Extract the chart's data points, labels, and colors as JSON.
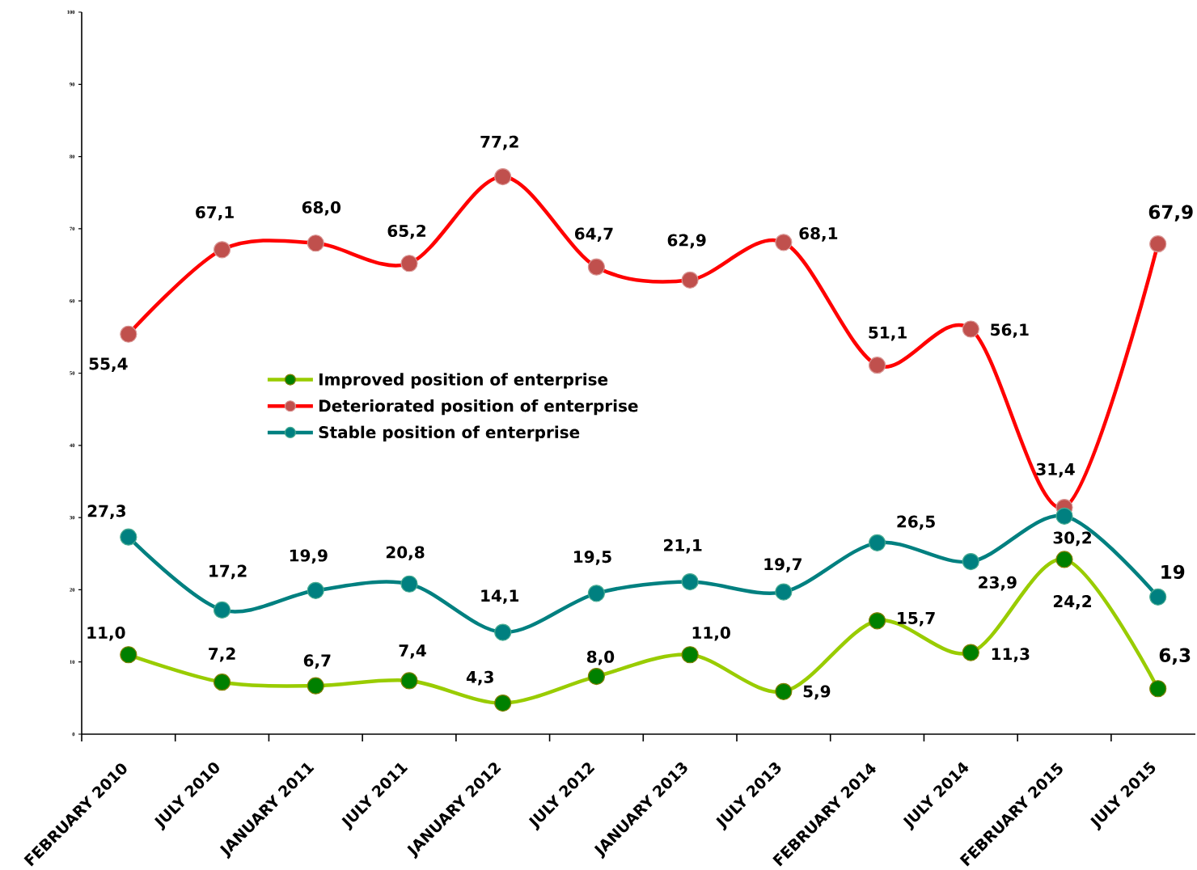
{
  "chart_data": {
    "type": "line",
    "categories": [
      "FEBRUARY 2010",
      "JULY 2010",
      "JANUARY 2011",
      "JULY 2011",
      "JANUARY 2012",
      "JULY 2012",
      "JANUARY 2013",
      "JULY 2013",
      "FEBRUARY 2014",
      "JULY 2014",
      "FEBRUARY 2015",
      "JULY 2015"
    ],
    "series": [
      {
        "name": "Improved position of enterprise",
        "color": "#99cc00",
        "values": [
          11.0,
          7.2,
          6.7,
          7.4,
          4.3,
          8.0,
          11.0,
          5.9,
          15.7,
          11.3,
          24.2,
          6.3
        ],
        "value_labels": [
          "11,0",
          "7,2",
          "6,7",
          "7,4",
          "4,3",
          "8,0",
          "11,0",
          "5,9",
          "15,7",
          "11,3",
          "24,2",
          "6,3"
        ]
      },
      {
        "name": "Deteriorated position of enterprise",
        "color": "#ff0000",
        "values": [
          55.4,
          67.1,
          68.0,
          65.2,
          77.2,
          64.7,
          62.9,
          68.1,
          51.1,
          56.1,
          31.4,
          67.9
        ],
        "value_labels": [
          "55,4",
          "67,1",
          "68,0",
          "65,2",
          "77,2",
          "64,7",
          "62,9",
          "68,1",
          "51,1",
          "56,1",
          "31,4",
          "67,9"
        ]
      },
      {
        "name": "Stable position of enterprise",
        "color": "#008080",
        "values": [
          27.3,
          17.2,
          19.9,
          20.8,
          14.1,
          19.5,
          21.1,
          19.7,
          26.5,
          23.9,
          30.2,
          19
        ],
        "value_labels": [
          "27,3",
          "17,2",
          "19,9",
          "20,8",
          "14,1",
          "19,5",
          "21,1",
          "19,7",
          "26,5",
          "23,9",
          "30,2",
          "19"
        ]
      }
    ],
    "ylim": [
      0,
      100
    ],
    "yticks": [
      0,
      10,
      20,
      30,
      40,
      50,
      60,
      70,
      80,
      90,
      100
    ],
    "legend": "center left",
    "marker": "circle",
    "line_style": "solid"
  }
}
